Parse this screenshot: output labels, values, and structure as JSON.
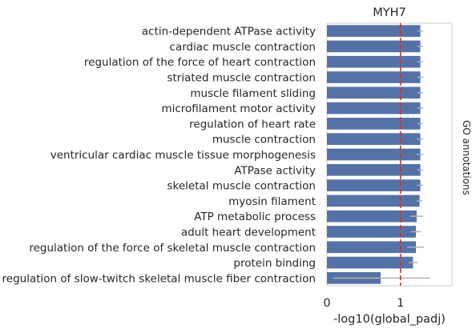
{
  "chart_data": {
    "type": "bar",
    "orientation": "horizontal",
    "title": "MYH7",
    "xlabel": "-log10(global_padj)",
    "side_label": "GO annotations",
    "xlim": [
      0,
      1.7
    ],
    "xticks": [
      0,
      1
    ],
    "reference_line": {
      "x": 1.0,
      "color": "#c0392b",
      "style": "dashed"
    },
    "bar_color": "#5572a6",
    "errorbar_color": "#b0b0b0",
    "grid": false,
    "categories": [
      "actin-dependent ATPase activity",
      "cardiac muscle contraction",
      "regulation of the force of heart contraction",
      "striated muscle contraction",
      "muscle filament sliding",
      "microfilament motor activity",
      "regulation of heart rate",
      "muscle contraction",
      "ventricular cardiac muscle tissue morphogenesis",
      "ATPase activity",
      "skeletal muscle contraction",
      "myosin filament",
      "ATP metabolic process",
      "adult heart development",
      "regulation of the force of skeletal muscle contraction",
      "protein binding",
      "regulation of slow-twitch skeletal muscle fiber contraction"
    ],
    "values": [
      1.27,
      1.27,
      1.27,
      1.27,
      1.27,
      1.27,
      1.27,
      1.27,
      1.27,
      1.27,
      1.27,
      1.26,
      1.22,
      1.21,
      1.21,
      1.17,
      0.73
    ],
    "error_low": [
      1.23,
      1.23,
      1.23,
      1.23,
      1.23,
      1.23,
      1.23,
      1.22,
      1.22,
      1.23,
      1.22,
      1.22,
      1.13,
      1.14,
      1.09,
      1.11,
      0.08
    ],
    "error_high": [
      1.31,
      1.31,
      1.31,
      1.31,
      1.31,
      1.31,
      1.31,
      1.31,
      1.31,
      1.31,
      1.31,
      1.3,
      1.31,
      1.28,
      1.32,
      1.23,
      1.4
    ]
  }
}
